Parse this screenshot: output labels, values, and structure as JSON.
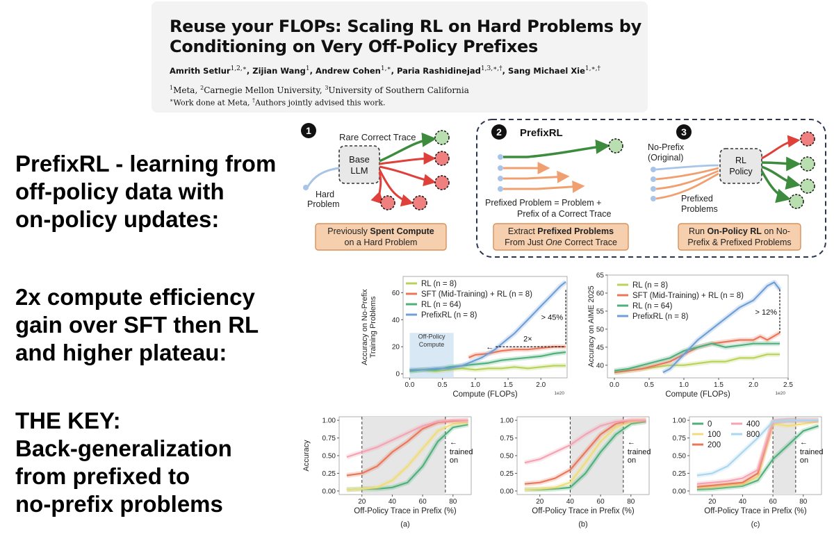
{
  "paper": {
    "title_line1": "Reuse your FLOPs: Scaling RL on Hard Problems by",
    "title_line2": "Conditioning on Very Off-Policy Prefixes",
    "authors": [
      {
        "name": "Amrith Setlur",
        "marks": "1,2,∗"
      },
      {
        "name": "Zijian Wang",
        "marks": "1"
      },
      {
        "name": "Andrew Cohen",
        "marks": "1,∗"
      },
      {
        "name": "Paria Rashidinejad",
        "marks": "1,3,∗,†"
      },
      {
        "name": "Sang Michael Xie",
        "marks": "1,∗,†"
      }
    ],
    "affiliations": [
      {
        "mark": "1",
        "name": "Meta"
      },
      {
        "mark": "2",
        "name": "Carnegie Mellon University"
      },
      {
        "mark": "3",
        "name": "University of Southern California"
      }
    ],
    "note_work": "Work done at Meta,",
    "note_advised": "Authors jointly advised this work."
  },
  "claims": {
    "prefixrl": "PrefixRL - learning from\noff-policy data with\non-policy updates:",
    "efficiency": "2x compute efficiency\ngain over SFT then RL\nand higher plateau:",
    "key": "THE KEY:\nBack-generalization\nfrom prefixed to\nno-prefix problems"
  },
  "diagram": {
    "step1": {
      "number": "1",
      "rare_trace": "Rare Correct Trace",
      "base_llm_1": "Base",
      "base_llm_2": "LLM",
      "hard_1": "Hard",
      "hard_2": "Problem",
      "box_1a": "Previously ",
      "box_1b": "Spent Compute",
      "box_2": "on a Hard Problem"
    },
    "step2": {
      "number": "2",
      "title": "PrefixRL",
      "def_1": "Prefixed Problem = Problem  +",
      "def_2": "Prefix of a Correct Trace",
      "box_1a": "Extract ",
      "box_1b": "Prefixed Problems",
      "box_2a": "From Just ",
      "box_2b": "One",
      "box_2c": " Correct Trace"
    },
    "step3": {
      "number": "3",
      "noprefix_1": "No-Prefix",
      "noprefix_2": "(Original)",
      "policy_1": "RL",
      "policy_2": "Policy",
      "prefixed_1": "Prefixed",
      "prefixed_2": "Problems",
      "box_1a": "Run ",
      "box_1b": "On-Policy RL",
      "box_1c": " on No-",
      "box_2": "Prefix & Prefixed Problems"
    },
    "colors": {
      "green": "#3d8b3d",
      "red": "#e0403a",
      "orange": "#f0a070",
      "blue": "#9ab8dc",
      "box": "#f6cfae",
      "box_border": "#d9905a"
    }
  },
  "chart_data": [
    {
      "type": "line",
      "ylabel": "Accuracy on No-Prefix Training Problems",
      "xlabel": "Compute (FLOPs)",
      "x_multiplier": "1e20",
      "xlim": [
        -0.1,
        2.4
      ],
      "ylim": [
        -3,
        72
      ],
      "xticks": [
        "0.0",
        "0.5",
        "1.0",
        "1.5",
        "2.0"
      ],
      "yticks": [
        "0",
        "20",
        "40",
        "60"
      ],
      "legend_position": "top-left",
      "shaded_region": {
        "x": [
          0.0,
          0.67
        ],
        "label_1": "Off-Policy",
        "label_2": "Compute"
      },
      "annotations": {
        "gain": "> 45%",
        "efficiency": "2×"
      },
      "series": [
        {
          "name": "RL (n = 8)",
          "color": "#b9d35a",
          "x": [
            0,
            0.2,
            0.4,
            0.6,
            0.8,
            1.0,
            1.2,
            1.4,
            1.6,
            1.8,
            2.0,
            2.2,
            2.38
          ],
          "y": [
            2,
            3,
            2,
            3,
            4,
            3,
            4,
            4,
            5,
            4,
            5,
            6,
            6
          ]
        },
        {
          "name": "SFT (Mid-Training) + RL (n = 8)",
          "color": "#e9775a",
          "x": [
            0.9,
            1.0,
            1.2,
            1.4,
            1.6,
            1.8,
            2.0,
            2.2,
            2.38
          ],
          "y": [
            12,
            14,
            15,
            17,
            18,
            18,
            19,
            20,
            20
          ]
        },
        {
          "name": "RL (n = 64)",
          "color": "#4fb07b",
          "x": [
            0,
            0.2,
            0.4,
            0.6,
            0.8,
            1.0,
            1.2,
            1.4,
            1.6,
            1.8,
            2.0,
            2.2,
            2.38
          ],
          "y": [
            2,
            3,
            3,
            5,
            6,
            7,
            8,
            10,
            11,
            12,
            13,
            15,
            16
          ]
        },
        {
          "name": "PrefixRL (n = 8)",
          "color": "#6f9fd6",
          "x": [
            0,
            0.2,
            0.4,
            0.6,
            0.7,
            0.8,
            0.9,
            1.0,
            1.1,
            1.2,
            1.3,
            1.4,
            1.5,
            1.6,
            1.7,
            1.8,
            1.9,
            2.0,
            2.1,
            2.2,
            2.3,
            2.38
          ],
          "y": [
            3,
            3,
            4,
            4,
            5,
            6,
            8,
            10,
            12,
            15,
            18,
            22,
            26,
            30,
            35,
            40,
            45,
            50,
            55,
            60,
            65,
            68
          ]
        }
      ]
    },
    {
      "type": "line",
      "ylabel": "Accuracy on AIME 2025",
      "xlabel": "Compute (FLOPs)",
      "x_multiplier": "1e20",
      "xlim": [
        -0.1,
        2.5
      ],
      "ylim": [
        36.5,
        65
      ],
      "xticks": [
        "0.0",
        "0.5",
        "1.0",
        "1.5",
        "2.0",
        "2.5"
      ],
      "yticks": [
        "40",
        "45",
        "50",
        "55",
        "60",
        "65"
      ],
      "legend_position": "top-left",
      "annotations": {
        "gain": "> 12%"
      },
      "series": [
        {
          "name": "RL (n = 8)",
          "color": "#b9d35a",
          "x": [
            0,
            0.2,
            0.4,
            0.6,
            0.8,
            1.0,
            1.2,
            1.4,
            1.6,
            1.8,
            2.0,
            2.2,
            2.38
          ],
          "y": [
            38,
            38.5,
            39,
            39.5,
            40,
            40,
            40.5,
            41,
            41,
            42,
            42,
            43,
            43
          ]
        },
        {
          "name": "SFT (Mid-Training) + RL (n = 8)",
          "color": "#e9775a",
          "x": [
            0,
            0.2,
            0.4,
            0.6,
            0.8,
            1.0,
            1.2,
            1.4,
            1.6,
            1.8,
            2.0,
            2.1,
            2.2,
            2.38
          ],
          "y": [
            38,
            38.5,
            39,
            40,
            41,
            43,
            45,
            46,
            46.5,
            47,
            47,
            48,
            47,
            49
          ]
        },
        {
          "name": "RL (n = 64)",
          "color": "#4fb07b",
          "x": [
            0,
            0.2,
            0.4,
            0.6,
            0.8,
            1.0,
            1.2,
            1.4,
            1.6,
            1.8,
            2.0,
            2.2,
            2.38
          ],
          "y": [
            38.5,
            39,
            40,
            41,
            42,
            44,
            45,
            46,
            45,
            45.5,
            46,
            46,
            46
          ]
        },
        {
          "name": "PrefixRL (n = 8)",
          "color": "#6f9fd6",
          "x": [
            0.7,
            0.8,
            0.9,
            1.0,
            1.1,
            1.2,
            1.4,
            1.6,
            1.8,
            2.0,
            2.1,
            2.2,
            2.3,
            2.38
          ],
          "y": [
            38,
            39,
            41,
            43,
            45,
            47,
            50,
            53,
            56,
            58,
            60,
            62,
            63,
            61
          ]
        }
      ]
    },
    {
      "type": "line",
      "panel": "(a)",
      "ylabel": "Accuracy",
      "xlabel": "Off-Policy Trace in Prefix (%)",
      "xlim": [
        5,
        92
      ],
      "ylim": [
        -0.05,
        1.05
      ],
      "xticks": [
        "20",
        "40",
        "60",
        "80"
      ],
      "yticks": [
        "0.00",
        "0.25",
        "0.50",
        "0.75",
        "1.00"
      ],
      "shaded_range": [
        20,
        75
      ],
      "trained_on_1": "trained",
      "trained_on_2": "on",
      "series": [
        {
          "color": "#4fb07b",
          "x": [
            10,
            20,
            30,
            40,
            50,
            60,
            70,
            80,
            90
          ],
          "y": [
            0.02,
            0.03,
            0.03,
            0.05,
            0.12,
            0.35,
            0.7,
            0.9,
            0.94
          ]
        },
        {
          "color": "#f0dd78",
          "x": [
            10,
            20,
            30,
            40,
            50,
            60,
            70,
            80,
            90
          ],
          "y": [
            0.02,
            0.03,
            0.05,
            0.15,
            0.35,
            0.6,
            0.85,
            0.95,
            0.97
          ]
        },
        {
          "color": "#e9775a",
          "x": [
            10,
            20,
            30,
            40,
            50,
            60,
            70,
            80,
            90
          ],
          "y": [
            0.22,
            0.25,
            0.35,
            0.55,
            0.7,
            0.88,
            0.97,
            0.99,
            1.0
          ]
        },
        {
          "color": "#f5a3b2",
          "x": [
            10,
            20,
            30,
            40,
            50,
            60,
            70,
            80,
            90
          ],
          "y": [
            0.48,
            0.55,
            0.62,
            0.72,
            0.82,
            0.92,
            0.98,
            1.0,
            1.0
          ]
        }
      ]
    },
    {
      "type": "line",
      "panel": "(b)",
      "xlabel": "Off-Policy Trace in Prefix (%)",
      "xlim": [
        5,
        92
      ],
      "ylim": [
        -0.05,
        1.05
      ],
      "xticks": [
        "20",
        "40",
        "60",
        "80"
      ],
      "yticks": [
        "0.00",
        "0.25",
        "0.50",
        "0.75",
        "1.00"
      ],
      "shaded_range": [
        40,
        75
      ],
      "trained_on_1": "trained",
      "trained_on_2": "on",
      "series": [
        {
          "color": "#4fb07b",
          "x": [
            10,
            20,
            30,
            40,
            50,
            60,
            70,
            80,
            90
          ],
          "y": [
            0.02,
            0.02,
            0.03,
            0.05,
            0.25,
            0.55,
            0.8,
            0.95,
            0.98
          ]
        },
        {
          "color": "#f0dd78",
          "x": [
            10,
            20,
            30,
            40,
            50,
            60,
            70,
            80,
            90
          ],
          "y": [
            0.02,
            0.03,
            0.05,
            0.12,
            0.4,
            0.7,
            0.9,
            0.98,
            1.0
          ]
        },
        {
          "color": "#e9775a",
          "x": [
            10,
            20,
            30,
            40,
            50,
            60,
            70,
            80,
            90
          ],
          "y": [
            0.1,
            0.12,
            0.18,
            0.3,
            0.55,
            0.8,
            0.95,
            1.0,
            1.0
          ]
        },
        {
          "color": "#f5a3b2",
          "x": [
            10,
            20,
            30,
            40,
            50,
            60,
            70,
            80,
            90
          ],
          "y": [
            0.4,
            0.45,
            0.55,
            0.65,
            0.8,
            0.92,
            0.98,
            1.0,
            1.0
          ]
        }
      ]
    },
    {
      "type": "line",
      "panel": "(c)",
      "xlabel": "Off-Policy Trace in Prefix (%)",
      "xlim": [
        5,
        92
      ],
      "ylim": [
        -0.05,
        1.05
      ],
      "xticks": [
        "20",
        "40",
        "60",
        "80"
      ],
      "yticks": [
        "0.00",
        "0.25",
        "0.50",
        "0.75",
        "1.00"
      ],
      "shaded_range": [
        60,
        75
      ],
      "trained_on_1": "trained",
      "trained_on_2": "on",
      "legend_position": "top-left",
      "series": [
        {
          "name": "0",
          "color": "#4fb07b",
          "x": [
            10,
            20,
            30,
            40,
            50,
            60,
            70,
            80,
            90
          ],
          "y": [
            0.02,
            0.03,
            0.05,
            0.07,
            0.15,
            0.45,
            0.65,
            0.85,
            0.92
          ]
        },
        {
          "name": "100",
          "color": "#f0dd78",
          "x": [
            10,
            20,
            30,
            40,
            50,
            60,
            70,
            80,
            90
          ],
          "y": [
            0.05,
            0.06,
            0.08,
            0.1,
            0.2,
            0.95,
            0.92,
            0.95,
            0.98
          ]
        },
        {
          "name": "200",
          "color": "#e9775a",
          "x": [
            10,
            20,
            30,
            40,
            50,
            60,
            70,
            80,
            90
          ],
          "y": [
            0.06,
            0.08,
            0.1,
            0.12,
            0.25,
            0.98,
            1.0,
            1.0,
            1.0
          ]
        },
        {
          "name": "400",
          "color": "#f5a3b2",
          "x": [
            10,
            20,
            30,
            40,
            50,
            60,
            70,
            80,
            90
          ],
          "y": [
            0.1,
            0.12,
            0.14,
            0.18,
            0.3,
            0.98,
            1.0,
            1.0,
            1.0
          ]
        },
        {
          "name": "800",
          "color": "#aad6f0",
          "x": [
            10,
            20,
            30,
            40,
            50,
            60,
            70,
            80,
            90
          ],
          "y": [
            0.22,
            0.25,
            0.35,
            0.55,
            0.75,
            0.98,
            1.0,
            1.0,
            1.0
          ]
        }
      ]
    }
  ]
}
